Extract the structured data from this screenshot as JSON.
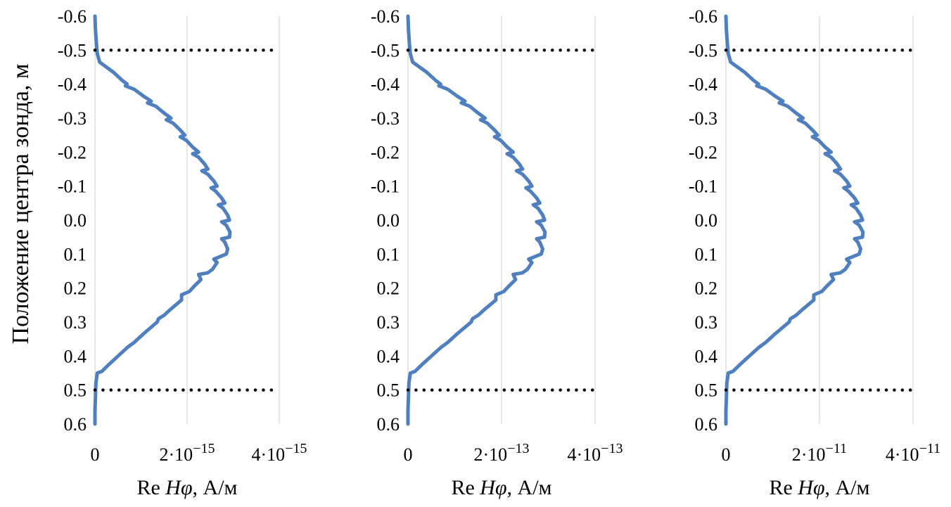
{
  "y_axis_title": "Положение центра зонда, м",
  "chart_data": [
    {
      "type": "line",
      "xlabel_parts": [
        "Re ",
        "Hφ",
        ", А/м"
      ],
      "x_ticks": [
        {
          "value": 0,
          "label": "0"
        },
        {
          "value": 2e-15,
          "label": "2·10",
          "exp": "−15"
        },
        {
          "value": 4e-15,
          "label": "4·10",
          "exp": "−15"
        }
      ],
      "xlim": [
        0,
        4e-15
      ],
      "ylim": [
        -0.6,
        0.6
      ],
      "y_inverted": true,
      "y_ticks": [
        "-0.6",
        "-0.5",
        "-0.4",
        "-0.3",
        "-0.2",
        "-0.1",
        "0.0",
        "0.1",
        "0.2",
        "0.3",
        "0.4",
        "0.5",
        "0.6"
      ],
      "hlines": [
        -0.5,
        0.5
      ],
      "scale": 1e-15
    },
    {
      "type": "line",
      "xlabel_parts": [
        "Re ",
        "Hφ",
        ", А/м"
      ],
      "x_ticks": [
        {
          "value": 0,
          "label": "0"
        },
        {
          "value": 2e-13,
          "label": "2·10",
          "exp": "−13"
        },
        {
          "value": 4e-13,
          "label": "4·10",
          "exp": "−13"
        }
      ],
      "xlim": [
        0,
        4e-13
      ],
      "ylim": [
        -0.6,
        0.6
      ],
      "y_inverted": true,
      "y_ticks": [
        "-0.6",
        "-0.5",
        "-0.4",
        "-0.3",
        "-0.2",
        "-0.1",
        "0.0",
        "0.1",
        "0.2",
        "0.3",
        "0.4",
        "0.5",
        "0.6"
      ],
      "hlines": [
        -0.5,
        0.5
      ],
      "scale": 1e-13
    },
    {
      "type": "line",
      "xlabel_parts": [
        "Re ",
        "Hφ",
        ", А/м"
      ],
      "x_ticks": [
        {
          "value": 0,
          "label": "0"
        },
        {
          "value": 2e-11,
          "label": "2·10",
          "exp": "−11"
        },
        {
          "value": 4e-11,
          "label": "4·10",
          "exp": "−11"
        }
      ],
      "xlim": [
        0,
        4e-11
      ],
      "ylim": [
        -0.6,
        0.6
      ],
      "y_inverted": true,
      "y_ticks": [
        "-0.6",
        "-0.5",
        "-0.4",
        "-0.3",
        "-0.2",
        "-0.1",
        "0.0",
        "0.1",
        "0.2",
        "0.3",
        "0.4",
        "0.5",
        "0.6"
      ],
      "hlines": [
        -0.5,
        0.5
      ],
      "scale": 1e-11
    }
  ],
  "curve_shape": {
    "note_units": "x in units of the panel's 10^n scale, y in metres",
    "points": [
      [
        0.0,
        -0.6
      ],
      [
        0.01,
        -0.56
      ],
      [
        0.03,
        -0.52
      ],
      [
        0.05,
        -0.49
      ],
      [
        0.1,
        -0.465
      ],
      [
        0.2,
        -0.455
      ],
      [
        0.4,
        -0.435
      ],
      [
        0.6,
        -0.41
      ],
      [
        0.7,
        -0.4
      ],
      [
        0.66,
        -0.395
      ],
      [
        0.85,
        -0.385
      ],
      [
        1.05,
        -0.365
      ],
      [
        1.22,
        -0.35
      ],
      [
        1.14,
        -0.345
      ],
      [
        1.32,
        -0.335
      ],
      [
        1.5,
        -0.315
      ],
      [
        1.65,
        -0.3
      ],
      [
        1.55,
        -0.295
      ],
      [
        1.7,
        -0.285
      ],
      [
        1.85,
        -0.265
      ],
      [
        1.95,
        -0.25
      ],
      [
        1.85,
        -0.245
      ],
      [
        1.98,
        -0.235
      ],
      [
        2.12,
        -0.215
      ],
      [
        2.25,
        -0.2
      ],
      [
        2.12,
        -0.195
      ],
      [
        2.25,
        -0.185
      ],
      [
        2.38,
        -0.165
      ],
      [
        2.45,
        -0.15
      ],
      [
        2.32,
        -0.145
      ],
      [
        2.45,
        -0.135
      ],
      [
        2.58,
        -0.115
      ],
      [
        2.65,
        -0.1
      ],
      [
        2.52,
        -0.095
      ],
      [
        2.62,
        -0.085
      ],
      [
        2.75,
        -0.065
      ],
      [
        2.82,
        -0.05
      ],
      [
        2.68,
        -0.045
      ],
      [
        2.78,
        -0.035
      ],
      [
        2.88,
        -0.015
      ],
      [
        2.92,
        0.0
      ],
      [
        2.75,
        0.005
      ],
      [
        2.85,
        0.015
      ],
      [
        2.93,
        0.035
      ],
      [
        2.92,
        0.05
      ],
      [
        2.75,
        0.055
      ],
      [
        2.82,
        0.065
      ],
      [
        2.88,
        0.085
      ],
      [
        2.85,
        0.1
      ],
      [
        2.58,
        0.115
      ],
      [
        2.65,
        0.125
      ],
      [
        2.55,
        0.145
      ],
      [
        2.45,
        0.155
      ],
      [
        2.25,
        0.16
      ],
      [
        2.3,
        0.175
      ],
      [
        2.15,
        0.195
      ],
      [
        2.05,
        0.21
      ],
      [
        1.88,
        0.22
      ],
      [
        1.88,
        0.235
      ],
      [
        1.62,
        0.265
      ],
      [
        1.5,
        0.28
      ],
      [
        1.38,
        0.29
      ],
      [
        1.35,
        0.3
      ],
      [
        1.05,
        0.335
      ],
      [
        0.85,
        0.36
      ],
      [
        0.75,
        0.37
      ],
      [
        0.7,
        0.375
      ],
      [
        0.5,
        0.4
      ],
      [
        0.3,
        0.425
      ],
      [
        0.15,
        0.445
      ],
      [
        0.05,
        0.45
      ],
      [
        0.02,
        0.48
      ],
      [
        0.01,
        0.52
      ],
      [
        0.0,
        0.56
      ],
      [
        0.0,
        0.6
      ]
    ]
  }
}
